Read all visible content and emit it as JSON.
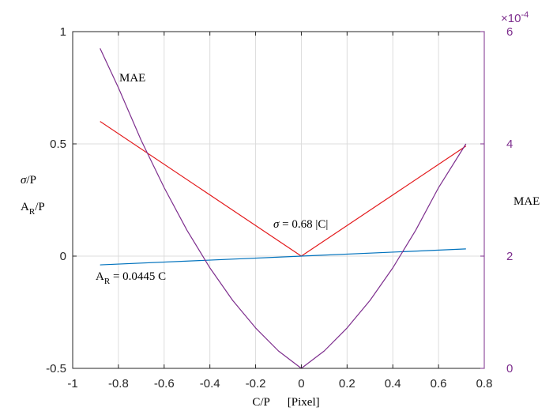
{
  "chart_data": {
    "type": "line",
    "xlabel": "C/P      [Pixel]",
    "xlim": [
      -1,
      0.8
    ],
    "xticks": [
      -1,
      -0.8,
      -0.6,
      -0.4,
      -0.2,
      0,
      0.2,
      0.4,
      0.6,
      0.8
    ],
    "xtick_labels": [
      "-1",
      "-0.8",
      "-0.6",
      "-0.4",
      "-0.2",
      "0",
      "0.2",
      "0.4",
      "0.6",
      "0.8"
    ],
    "ylim_left": [
      -0.5,
      1
    ],
    "yticks_left": [
      -0.5,
      0,
      0.5,
      1
    ],
    "ytick_labels_left": [
      "-0.5",
      "0",
      "0.5",
      "1"
    ],
    "ylabel_left": {
      "line1_sym": "σ",
      "line1_rest": "/P",
      "line2_main": "A",
      "line2_sub": "R",
      "line2_rest": "/P"
    },
    "ylim_right": [
      0,
      6
    ],
    "yticks_right": [
      0,
      2,
      4,
      6
    ],
    "ytick_labels_right": [
      "0",
      "2",
      "4",
      "6"
    ],
    "right_exponent": {
      "base": "×10",
      "power": "-4"
    },
    "ylabel_right": "MAE",
    "grid": true,
    "series": [
      {
        "name": "σ = 0.68 |C|",
        "color": "#E31A1C",
        "axis": "left",
        "x": [
          -0.88,
          0,
          0.72
        ],
        "y": [
          0.6,
          0,
          0.49
        ]
      },
      {
        "name": "A_R = 0.0445 C",
        "color": "#0072BD",
        "axis": "left",
        "x": [
          -0.88,
          0.72
        ],
        "y": [
          -0.039,
          0.032
        ]
      },
      {
        "name": "MAE",
        "color": "#7E2F8E",
        "axis": "right",
        "x": [
          -0.88,
          -0.8,
          -0.7,
          -0.6,
          -0.5,
          -0.4,
          -0.3,
          -0.2,
          -0.1,
          0,
          0.1,
          0.2,
          0.3,
          0.4,
          0.5,
          0.6,
          0.72
        ],
        "y": [
          5.7,
          5.0,
          4.06,
          3.22,
          2.46,
          1.79,
          1.21,
          0.72,
          0.31,
          0.0,
          0.31,
          0.72,
          1.21,
          1.79,
          2.46,
          3.22,
          4.0
        ]
      }
    ],
    "annotations": {
      "mae": "MAE",
      "sigma_sym": "σ",
      "sigma_rest": " = 0.68 |C|",
      "ar_main": "A",
      "ar_sub": "R",
      "ar_rest": " = 0.0445 C"
    }
  }
}
